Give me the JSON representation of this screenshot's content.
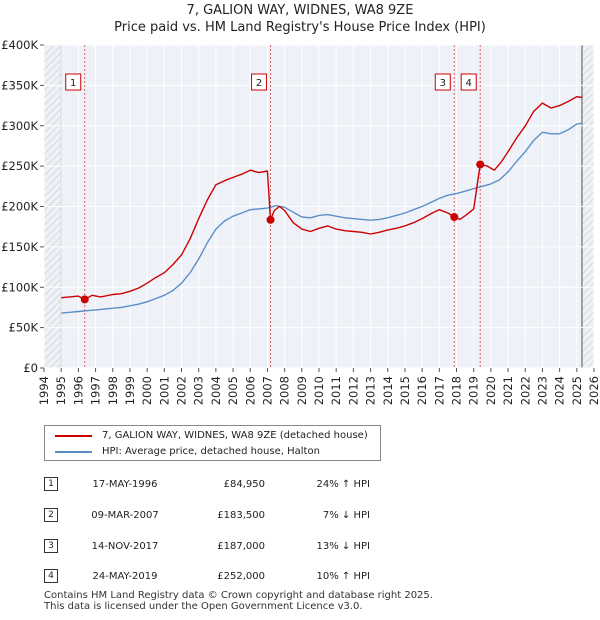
{
  "chart_data": {
    "type": "line",
    "title": "7, GALION WAY, WIDNES, WA8 9ZE",
    "subtitle": "Price paid vs. HM Land Registry's House Price Index (HPI)",
    "xlabel": "",
    "ylabel": "",
    "xlim": [
      1994.0,
      2026.0
    ],
    "ylim": [
      0,
      400000
    ],
    "x_ticks": [
      "1994",
      "1995",
      "1996",
      "1997",
      "1998",
      "1999",
      "2000",
      "2001",
      "2002",
      "2003",
      "2004",
      "2005",
      "2006",
      "2007",
      "2008",
      "2009",
      "2010",
      "2011",
      "2012",
      "2013",
      "2014",
      "2015",
      "2016",
      "2017",
      "2018",
      "2019",
      "2020",
      "2021",
      "2022",
      "2023",
      "2024",
      "2025",
      "2026"
    ],
    "y_ticks": [
      {
        "value": 0,
        "label": "£0"
      },
      {
        "value": 50000,
        "label": "£50K"
      },
      {
        "value": 100000,
        "label": "£100K"
      },
      {
        "value": 150000,
        "label": "£150K"
      },
      {
        "value": 200000,
        "label": "£200K"
      },
      {
        "value": 250000,
        "label": "£250K"
      },
      {
        "value": 300000,
        "label": "£300K"
      },
      {
        "value": 350000,
        "label": "£350K"
      },
      {
        "value": 400000,
        "label": "£400K"
      }
    ],
    "grid": true,
    "data_range": [
      1995.0,
      2025.3
    ],
    "series": [
      {
        "name": "7, GALION WAY, WIDNES, WA8 9ZE (detached house)",
        "color": "#cc0000",
        "x": [
          1995.0,
          1995.5,
          1996.0,
          1996.37,
          1996.8,
          1997.3,
          1998.0,
          1998.5,
          1999.0,
          1999.5,
          2000.0,
          2000.5,
          2001.0,
          2001.5,
          2002.0,
          2002.5,
          2003.0,
          2003.5,
          2004.0,
          2004.5,
          2005.0,
          2005.5,
          2006.0,
          2006.5,
          2007.0,
          2007.18,
          2007.4,
          2007.7,
          2008.0,
          2008.5,
          2009.0,
          2009.5,
          2010.0,
          2010.5,
          2011.0,
          2011.5,
          2012.0,
          2012.5,
          2013.0,
          2013.5,
          2014.0,
          2014.5,
          2015.0,
          2015.5,
          2016.0,
          2016.5,
          2017.0,
          2017.5,
          2017.87,
          2018.2,
          2018.6,
          2019.0,
          2019.38,
          2019.8,
          2020.2,
          2020.6,
          2021.0,
          2021.5,
          2022.0,
          2022.5,
          2023.0,
          2023.5,
          2024.0,
          2024.5,
          2025.0,
          2025.3
        ],
        "y": [
          87000,
          88000,
          89000,
          84950,
          90000,
          88000,
          91000,
          92000,
          95000,
          99000,
          105000,
          112000,
          118000,
          128000,
          140000,
          160000,
          185000,
          208000,
          227000,
          232000,
          236000,
          240000,
          245000,
          242000,
          244000,
          183500,
          195000,
          200000,
          195000,
          180000,
          172000,
          169000,
          173000,
          176000,
          172000,
          170000,
          169000,
          168000,
          166000,
          168000,
          171000,
          173000,
          176000,
          180000,
          185000,
          191000,
          196000,
          192000,
          187000,
          184000,
          190000,
          197000,
          252000,
          250000,
          245000,
          255000,
          268000,
          285000,
          300000,
          318000,
          328000,
          322000,
          325000,
          330000,
          336000,
          335000
        ]
      },
      {
        "name": "HPI: Average price, detached house, Halton",
        "color": "#5b8ec8",
        "x": [
          1995.0,
          1995.5,
          1996.0,
          1996.5,
          1997.0,
          1997.5,
          1998.0,
          1998.5,
          1999.0,
          1999.5,
          2000.0,
          2000.5,
          2001.0,
          2001.5,
          2002.0,
          2002.5,
          2003.0,
          2003.5,
          2004.0,
          2004.5,
          2005.0,
          2005.5,
          2006.0,
          2006.5,
          2007.0,
          2007.5,
          2008.0,
          2008.5,
          2009.0,
          2009.5,
          2010.0,
          2010.5,
          2011.0,
          2011.5,
          2012.0,
          2012.5,
          2013.0,
          2013.5,
          2014.0,
          2014.5,
          2015.0,
          2015.5,
          2016.0,
          2016.5,
          2017.0,
          2017.5,
          2018.0,
          2018.5,
          2019.0,
          2019.5,
          2020.0,
          2020.5,
          2021.0,
          2021.5,
          2022.0,
          2022.5,
          2023.0,
          2023.5,
          2024.0,
          2024.5,
          2025.0,
          2025.3
        ],
        "y": [
          68000,
          69000,
          70000,
          71000,
          72000,
          73000,
          74000,
          75000,
          77000,
          79000,
          82000,
          86000,
          90000,
          96000,
          105000,
          118000,
          135000,
          155000,
          172000,
          182000,
          188000,
          192000,
          196000,
          197000,
          198000,
          201000,
          199000,
          193000,
          187000,
          186000,
          189000,
          190000,
          188000,
          186000,
          185000,
          184000,
          183000,
          184000,
          186000,
          189000,
          192000,
          196000,
          200000,
          205000,
          210000,
          214000,
          216000,
          219000,
          222000,
          225000,
          228000,
          233000,
          243000,
          256000,
          268000,
          282000,
          292000,
          290000,
          290000,
          295000,
          302000,
          303000
        ]
      }
    ],
    "markers": [
      {
        "label": "1",
        "x": 1996.37,
        "y": 84950
      },
      {
        "label": "2",
        "x": 2007.18,
        "y": 183500
      },
      {
        "label": "3",
        "x": 2017.87,
        "y": 187000
      },
      {
        "label": "4",
        "x": 2019.38,
        "y": 252000
      }
    ]
  },
  "legend": {
    "entries": [
      {
        "label": "7, GALION WAY, WIDNES, WA8 9ZE (detached house)",
        "color": "#cc0000"
      },
      {
        "label": "HPI: Average price, detached house, Halton",
        "color": "#5b8ec8"
      }
    ]
  },
  "sales": [
    {
      "num": "1",
      "date": "17-MAY-1996",
      "price": "£84,950",
      "hpi": "24% ↑ HPI"
    },
    {
      "num": "2",
      "date": "09-MAR-2007",
      "price": "£183,500",
      "hpi": "7% ↓ HPI"
    },
    {
      "num": "3",
      "date": "14-NOV-2017",
      "price": "£187,000",
      "hpi": "13% ↓ HPI"
    },
    {
      "num": "4",
      "date": "24-MAY-2019",
      "price": "£252,000",
      "hpi": "10% ↑ HPI"
    }
  ],
  "footer": {
    "line1": "Contains HM Land Registry data © Crown copyright and database right 2025.",
    "line2": "This data is licensed under the Open Government Licence v3.0."
  }
}
